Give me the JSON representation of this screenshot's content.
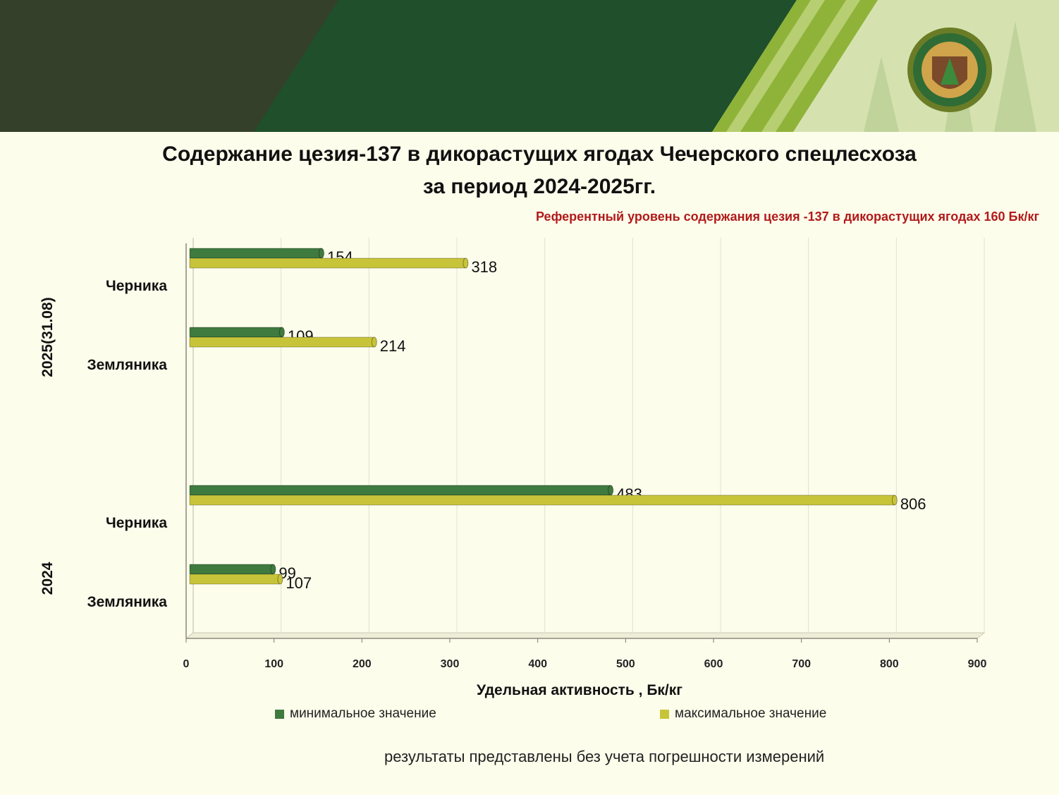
{
  "header": {
    "title_line1": "Содержание цезия-137 в дикорастущих ягодах Чечерского спецлесхоза",
    "title_line2": "за период 2024-2025гг.",
    "reference_note": "Референтный уровень содержания цезия -137 в дикорастущих ягодах 160 Бк/кг"
  },
  "footer": {
    "note": "результаты представлены без учета погрешности измерений"
  },
  "colors": {
    "min_series": "#3f7a3e",
    "max_series": "#c8c43a",
    "banner_dark": "#1f4f2b",
    "banner_olive": "#34402a",
    "banner_light": "#8fb339",
    "reference_text": "#b11a1a"
  },
  "chart_data": {
    "type": "bar",
    "orientation": "horizontal",
    "xlabel": "Удельная активность , Бк/кг",
    "xlim": [
      0,
      900
    ],
    "xticks": [
      "0",
      "100",
      "200",
      "300",
      "400",
      "500",
      "600",
      "700",
      "800",
      "900"
    ],
    "groups": [
      {
        "label": "2025(31.08)",
        "categories": [
          "Черника",
          "Земляника"
        ]
      },
      {
        "label": "2024",
        "categories": [
          "Черника",
          "Земляника"
        ]
      }
    ],
    "categories": [
      "Черника",
      "Земляника",
      "Черника",
      "Земляника"
    ],
    "series": [
      {
        "name": "минимальное значение",
        "values": [
          154,
          109,
          483,
          99
        ],
        "labels": [
          "154",
          "109",
          "483",
          "99"
        ]
      },
      {
        "name": "максимальное значение",
        "values": [
          318,
          214,
          806,
          107
        ],
        "labels": [
          "318",
          "214",
          "806",
          "107"
        ]
      }
    ]
  }
}
